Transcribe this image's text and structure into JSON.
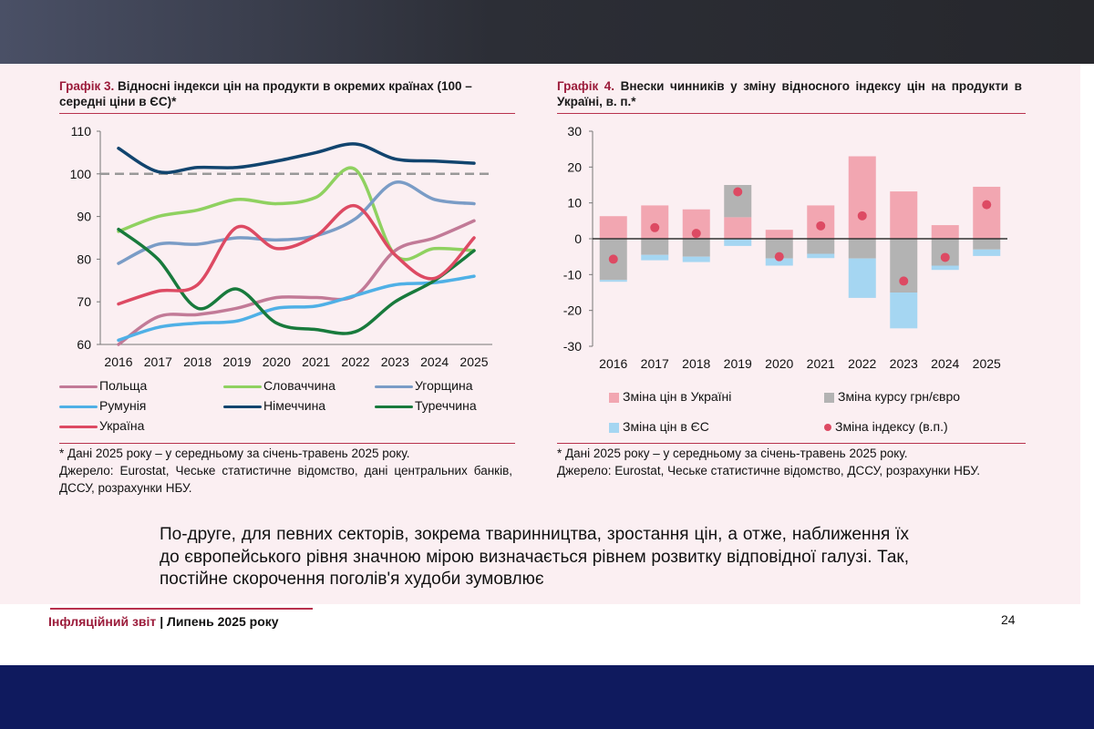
{
  "chart3": {
    "label": "Графік 3.",
    "title": "Відносні індекси цін на продукти в окремих країнах (100 – середні ціни в ЄС)*",
    "note": "* Дані 2025 року – у середньому за січень-травень 2025 року.",
    "source": "Джерело: Eurostat, Чеське статистичне відомство, дані центральних банків, ДССУ, розрахунки НБУ."
  },
  "chart4": {
    "label": "Графік 4.",
    "title": "Внески чинників у зміну відносного індексу цін на продукти в Україні, в. п.*",
    "note": "* Дані 2025 року – у середньому за січень-травень 2025 року.",
    "source": "Джерело: Eurostat, Чеське статистичне відомство, ДССУ, розрахунки НБУ."
  },
  "body_text": "По-друге, для певних секторів, зокрема тваринництва, зростання цін, а отже, наближення їх до європейського рівня значною мірою визначається рівнем розвитку відповідної галузі. Так, постійне скорочення поголів'я худоби зумовлює",
  "footer": {
    "report": "Інфляційний звіт",
    "separator": "|",
    "period": "Липень 2025 року",
    "page": "24"
  },
  "colors": {
    "poland": "#c27a97",
    "slovakia": "#8fd160",
    "hungary": "#7a9cc6",
    "romania": "#4fb0e6",
    "germany": "#11446e",
    "turkey": "#187a3c",
    "ukraine": "#dd4a63",
    "ua_prices": "#f2a6b1",
    "fx": "#b3b3b3",
    "eu_prices": "#a5d6f2",
    "index": "#dd4a63"
  },
  "chart_data": [
    {
      "type": "line",
      "x": [
        "2016",
        "2017",
        "2018",
        "2019",
        "2020",
        "2021",
        "2022",
        "2023",
        "2024",
        "2025"
      ],
      "ylim": [
        60,
        110
      ],
      "yticks": [
        "60",
        "70",
        "80",
        "90",
        "100",
        "110"
      ],
      "reference_line": 100,
      "series": [
        {
          "name": "Польща",
          "color_key": "poland",
          "values": [
            60,
            66.5,
            67,
            68.5,
            71,
            71,
            71.5,
            82,
            85,
            89
          ]
        },
        {
          "name": "Словаччина",
          "color_key": "slovakia",
          "values": [
            86.5,
            90,
            91.5,
            94,
            93,
            94.5,
            101,
            81,
            82.5,
            82
          ]
        },
        {
          "name": "Угорщина",
          "color_key": "hungary",
          "values": [
            79,
            83.5,
            83.5,
            85,
            84.5,
            85.5,
            89.5,
            98,
            94,
            93
          ]
        },
        {
          "name": "Румунія",
          "color_key": "romania",
          "values": [
            61,
            64,
            65,
            65.5,
            68.5,
            69,
            71.5,
            74,
            74.5,
            76
          ]
        },
        {
          "name": "Німеччина",
          "color_key": "germany",
          "values": [
            106,
            100.5,
            101.5,
            101.5,
            103,
            105,
            107,
            103.5,
            103,
            102.5
          ]
        },
        {
          "name": "Туреччина",
          "color_key": "turkey",
          "values": [
            87,
            80,
            68.5,
            73,
            65,
            63.5,
            63,
            70,
            75,
            82
          ]
        },
        {
          "name": "Україна",
          "color_key": "ukraine",
          "values": [
            69.5,
            72.5,
            74,
            87.5,
            82.5,
            85.5,
            92.5,
            81,
            75.5,
            85
          ]
        }
      ]
    },
    {
      "type": "bar",
      "stacked": true,
      "categories": [
        "2016",
        "2017",
        "2018",
        "2019",
        "2020",
        "2021",
        "2022",
        "2023",
        "2024",
        "2025"
      ],
      "ylim": [
        -30,
        30
      ],
      "yticks": [
        "-30",
        "-20",
        "-10",
        "0",
        "10",
        "20",
        "30"
      ],
      "series": [
        {
          "name": "Зміна цін в Україні",
          "color_key": "ua_prices",
          "marker": "square",
          "values": [
            6.3,
            9.3,
            8.2,
            6,
            2.5,
            9.3,
            23,
            13.2,
            3.8,
            14.5
          ]
        },
        {
          "name": "Зміна курсу грн/євро",
          "color_key": "fx",
          "marker": "square",
          "values": [
            -11.5,
            -4.5,
            -5,
            9,
            -5.5,
            -4.2,
            -5.5,
            -15,
            -7.5,
            -3
          ]
        },
        {
          "name": "Зміна цін в ЄС",
          "color_key": "eu_prices",
          "marker": "square",
          "values": [
            -0.5,
            -1.5,
            -1.5,
            -2,
            -2,
            -1.2,
            -11,
            -10,
            -1.2,
            -1.8
          ]
        },
        {
          "name": "Зміна індексу (в.п.)",
          "color_key": "index",
          "marker": "dot",
          "type": "scatter",
          "values": [
            -5.7,
            3.1,
            1.5,
            13.1,
            -5,
            3.6,
            6.4,
            -11.8,
            -5.2,
            9.5
          ]
        }
      ]
    }
  ]
}
